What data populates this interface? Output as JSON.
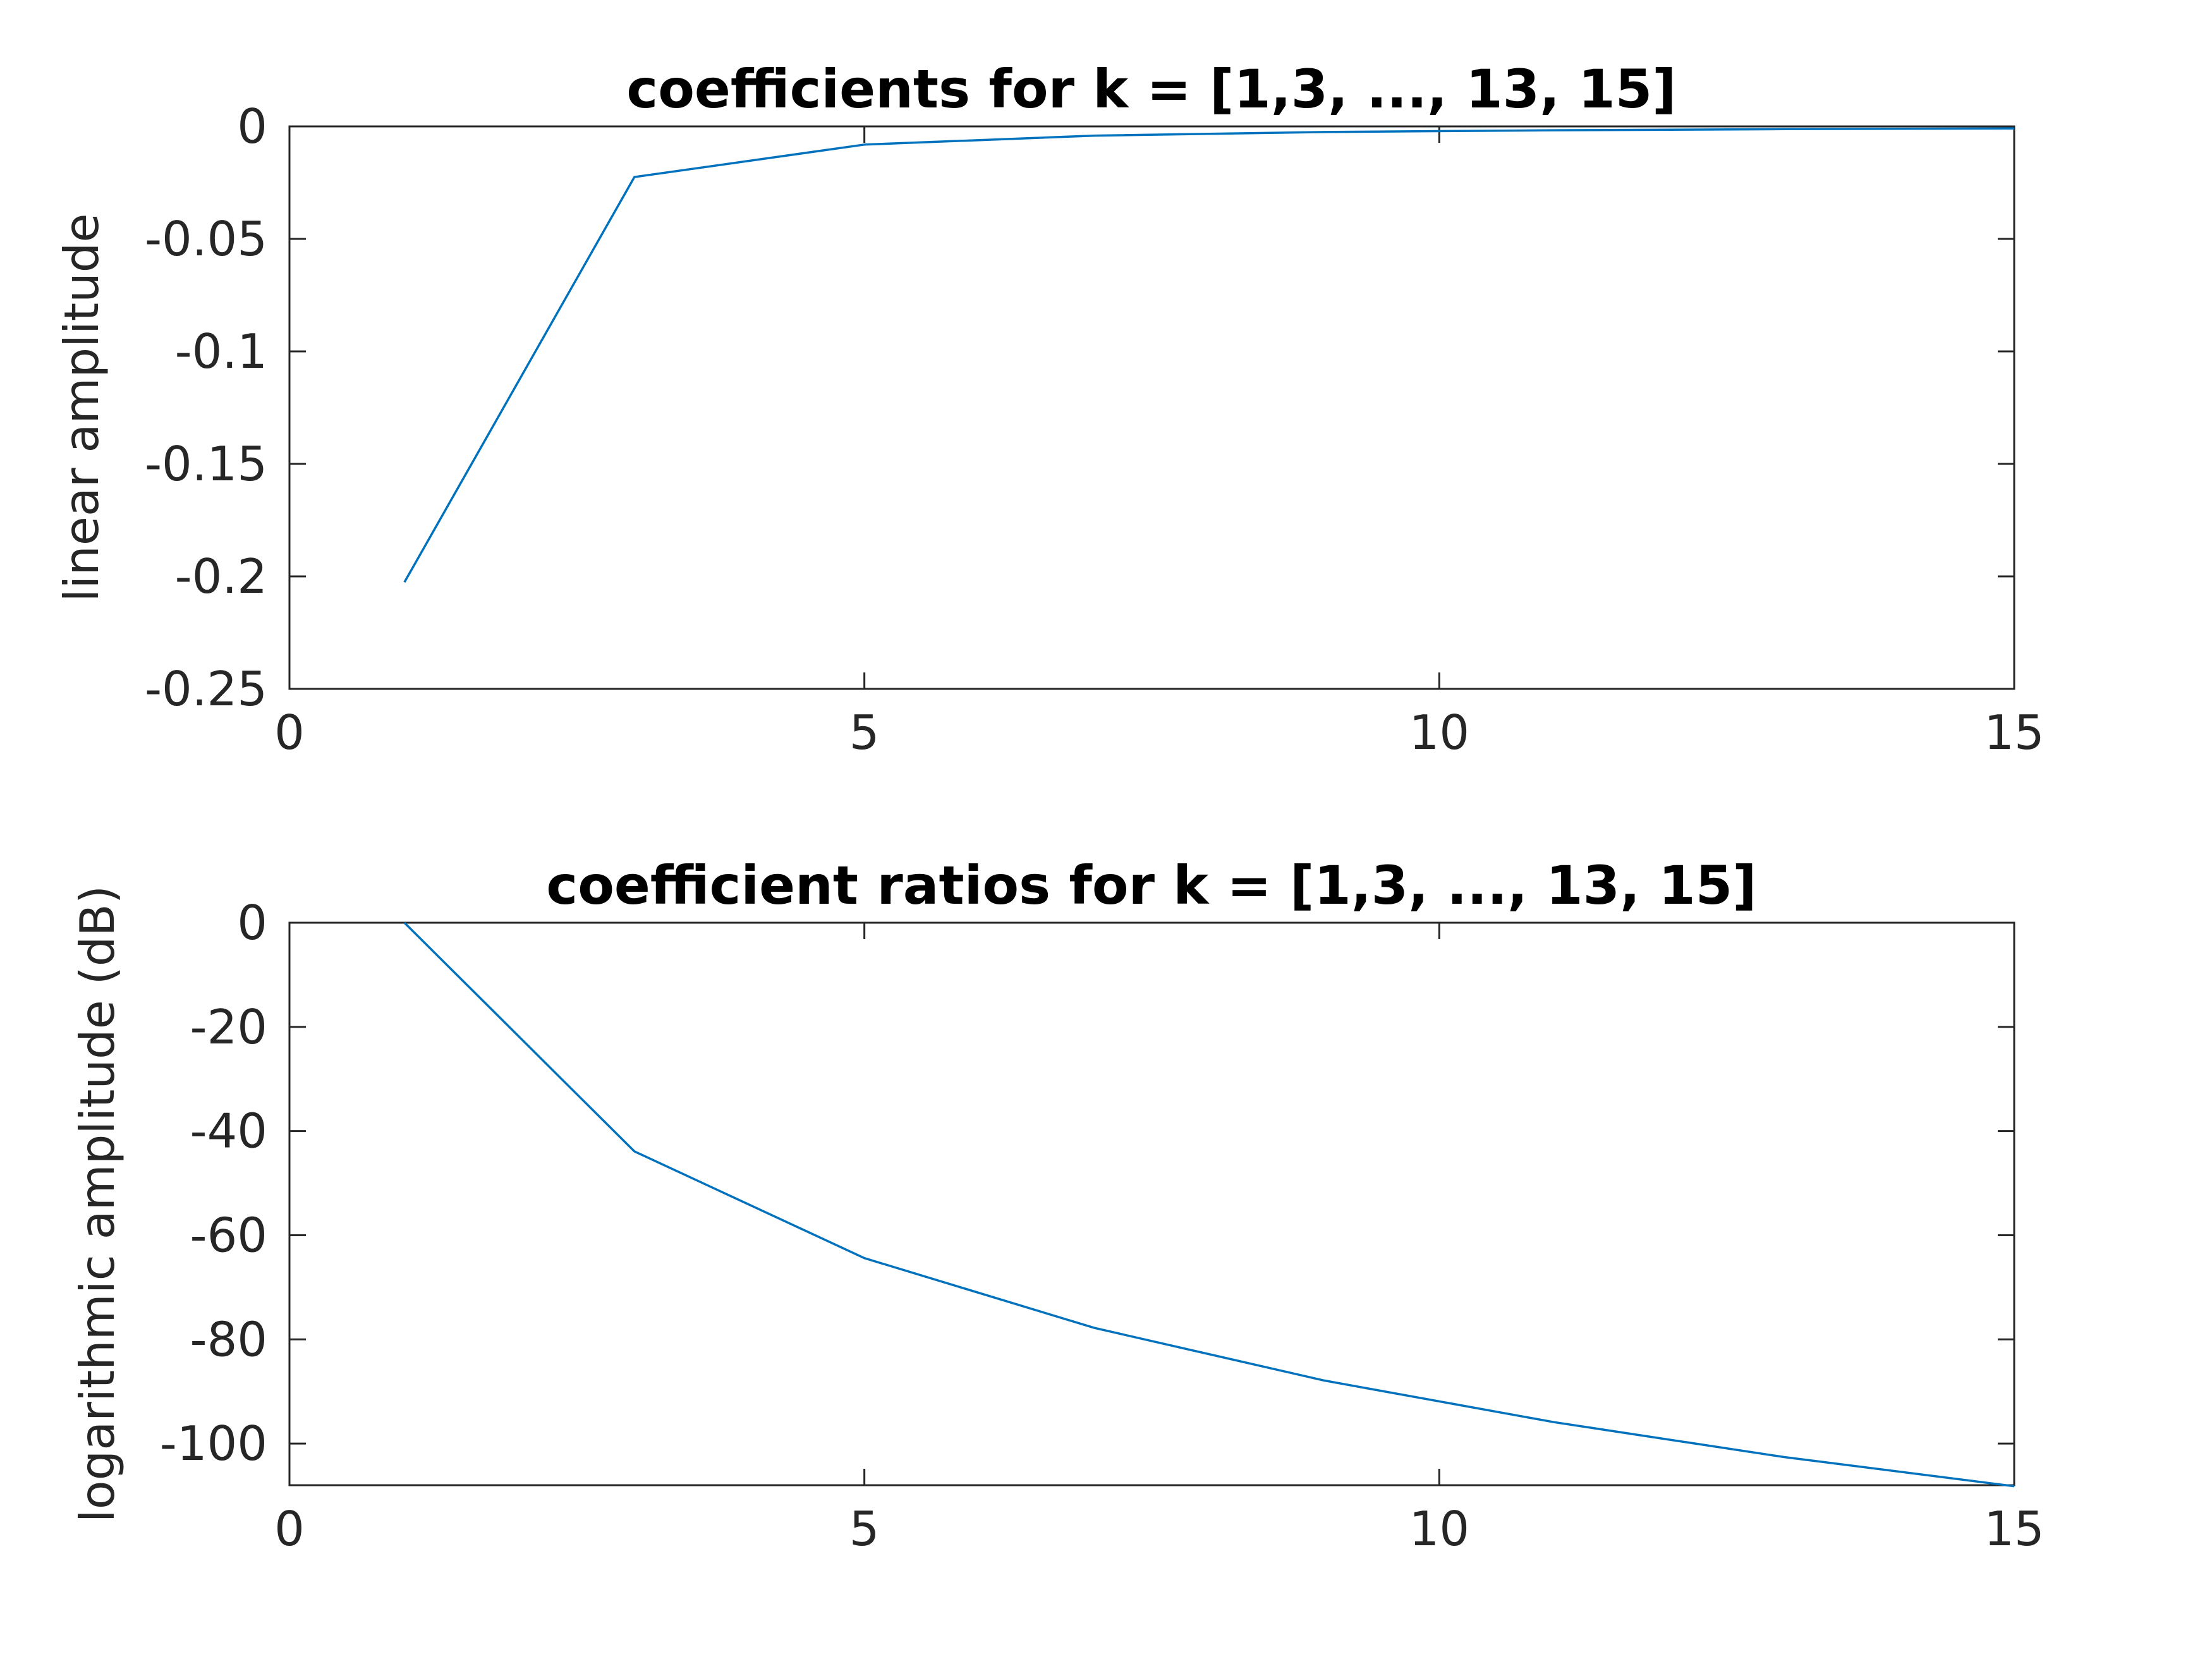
{
  "chart_data": [
    {
      "type": "line",
      "title": "coefficients for k = [1,3, ..., 13, 15]",
      "xlabel": "",
      "ylabel": "linear amplitude",
      "xlim": [
        0,
        15
      ],
      "ylim": [
        -0.25,
        0
      ],
      "xticks": [
        0,
        5,
        10,
        15
      ],
      "xtick_labels": [
        "0",
        "5",
        "10",
        "15"
      ],
      "yticks": [
        0,
        -0.05,
        -0.1,
        -0.15,
        -0.2,
        -0.25
      ],
      "ytick_labels": [
        "0",
        "-0.05",
        "-0.1",
        "-0.15",
        "-0.2",
        "-0.25"
      ],
      "grid": false,
      "series": [
        {
          "color": "#0072bd",
          "x": [
            1,
            3,
            5,
            7,
            9,
            11,
            13,
            15
          ],
          "y": [
            -0.2026,
            -0.0225,
            -0.0081,
            -0.0041,
            -0.0025,
            -0.0017,
            -0.0012,
            -0.0009
          ]
        }
      ]
    },
    {
      "type": "line",
      "title": "coefficient ratios for k = [1,3, ..., 13, 15]",
      "xlabel": "",
      "ylabel": "logarithmic amplitude (dB)",
      "xlim": [
        0,
        15
      ],
      "ylim": [
        -108,
        0
      ],
      "xticks": [
        0,
        5,
        10,
        15
      ],
      "xtick_labels": [
        "0",
        "5",
        "10",
        "15"
      ],
      "yticks": [
        0,
        -20,
        -40,
        -60,
        -80,
        -100
      ],
      "ytick_labels": [
        "0",
        "-20",
        "-40",
        "-60",
        "-80",
        "-100"
      ],
      "grid": false,
      "series": [
        {
          "color": "#0072bd",
          "x": [
            1,
            3,
            5,
            7,
            9,
            11,
            13,
            15
          ],
          "y": [
            0,
            -43.9,
            -64.4,
            -77.8,
            -87.9,
            -95.9,
            -102.6,
            -108.2
          ]
        }
      ]
    }
  ]
}
